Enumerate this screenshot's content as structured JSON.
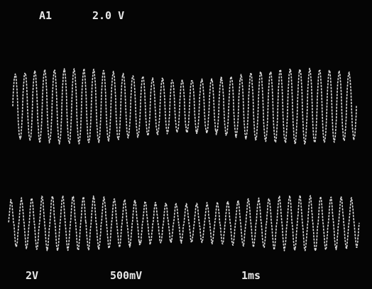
{
  "header": {
    "channel": "A1",
    "scale": "2.0 V"
  },
  "footer": {
    "ch1_scale": "2V",
    "ch2_scale": "500mV",
    "timebase": "1ms"
  }
}
